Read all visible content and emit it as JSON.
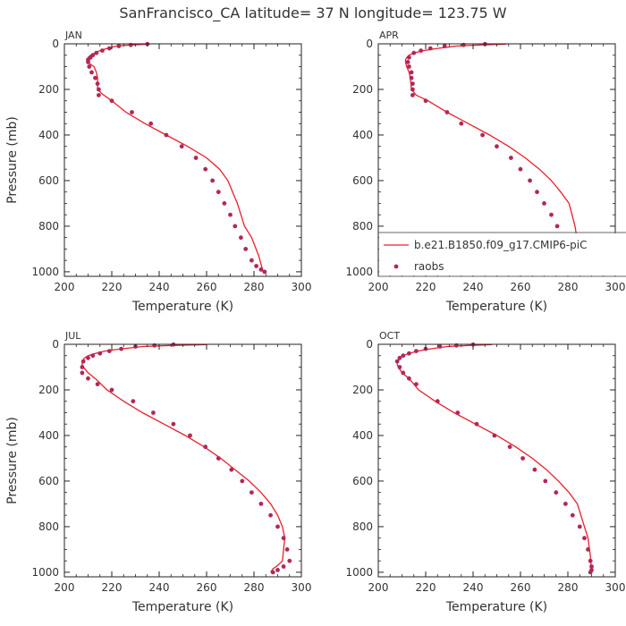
{
  "figure": {
    "title": "SanFrancisco_CA  latitude= 37 N longitude= 123.75 W",
    "colors": {
      "model": "#e8202a",
      "obs": "#b0285a",
      "axis": "#222222",
      "text": "#333333"
    }
  },
  "chart_data": [
    {
      "type": "line",
      "title": "JAN",
      "xlabel": "Temperature (K)",
      "ylabel": "Pressure (mb)",
      "xlim": [
        200,
        300
      ],
      "ylim": [
        1020,
        0
      ],
      "xticks": [
        "200",
        "220",
        "240",
        "260",
        "280",
        "300"
      ],
      "yticks": [
        "0",
        "200",
        "400",
        "600",
        "800",
        "1000"
      ],
      "grid": false,
      "series": [
        {
          "kind": "line",
          "x": [
            236,
            228,
            222,
            218,
            215,
            213,
            211,
            210,
            209.5,
            210,
            211,
            212.5,
            213.5,
            214,
            214,
            216,
            220,
            226,
            234,
            243,
            252,
            260,
            265.5,
            269,
            271,
            273,
            276,
            279,
            282,
            284
          ],
          "y": [
            1,
            5,
            10,
            20,
            30,
            40,
            50,
            60,
            70,
            80,
            90,
            100,
            125,
            150,
            200,
            220,
            250,
            300,
            350,
            400,
            450,
            500,
            550,
            600,
            650,
            700,
            800,
            850,
            930,
            1005
          ]
        },
        {
          "kind": "scatter",
          "x": [
            235,
            228,
            223,
            219,
            216,
            213.5,
            212,
            211,
            210,
            210,
            210.5,
            211.5,
            213,
            214,
            214.5,
            214.5,
            220,
            228.5,
            236.5,
            243,
            249.5,
            255.5,
            259.5,
            262.5,
            265,
            267.5,
            270,
            272,
            274.5,
            276.5,
            279,
            281,
            283,
            284.5
          ],
          "y": [
            1,
            5,
            10,
            20,
            30,
            40,
            50,
            60,
            70,
            80,
            100,
            125,
            150,
            175,
            200,
            225,
            250,
            300,
            350,
            400,
            450,
            500,
            550,
            600,
            650,
            700,
            750,
            800,
            850,
            900,
            950,
            975,
            990,
            1000
          ]
        }
      ]
    },
    {
      "type": "line",
      "title": "APR",
      "xlabel": "Temperature (K)",
      "ylabel": "",
      "xlim": [
        200,
        300
      ],
      "ylim": [
        1020,
        0
      ],
      "xticks": [
        "200",
        "220",
        "240",
        "260",
        "280",
        "300"
      ],
      "yticks": [
        "0",
        "200",
        "400",
        "600",
        "800",
        "1000"
      ],
      "grid": false,
      "series": [
        {
          "kind": "line",
          "x": [
            254,
            243,
            233,
            225,
            219,
            215,
            213,
            212,
            211.5,
            211.5,
            212,
            213,
            213.5,
            214,
            216,
            221,
            229,
            238,
            247,
            255,
            262,
            268,
            273,
            277,
            280.5,
            283,
            284.5,
            285.5
          ],
          "y": [
            1,
            5,
            10,
            20,
            30,
            40,
            50,
            60,
            70,
            80,
            100,
            125,
            150,
            200,
            225,
            250,
            300,
            350,
            400,
            450,
            500,
            550,
            600,
            650,
            700,
            800,
            900,
            1005
          ]
        },
        {
          "kind": "scatter",
          "x": [
            245,
            236,
            228,
            222,
            218,
            215,
            213,
            212.5,
            213,
            214,
            214,
            214.5,
            214.5,
            214.5,
            220,
            229,
            235,
            244,
            250,
            256,
            260,
            264,
            267,
            270,
            273,
            275.5,
            278,
            280.5,
            282,
            283.5,
            284.5,
            285.5
          ],
          "y": [
            1,
            5,
            10,
            20,
            30,
            40,
            60,
            80,
            100,
            125,
            150,
            175,
            200,
            225,
            250,
            300,
            350,
            400,
            450,
            500,
            550,
            600,
            650,
            700,
            750,
            800,
            850,
            900,
            950,
            975,
            990,
            1000
          ]
        }
      ],
      "legend": {
        "placement": "bottom-right",
        "entries": [
          {
            "kind": "line",
            "label": "b.e21.B1850.f09_g17.CMIP6-piC"
          },
          {
            "kind": "scatter",
            "label": "raobs"
          }
        ]
      }
    },
    {
      "type": "line",
      "title": "JUL",
      "xlabel": "Temperature (K)",
      "ylabel": "Pressure (mb)",
      "xlim": [
        200,
        300
      ],
      "ylim": [
        1020,
        0
      ],
      "xticks": [
        "200",
        "220",
        "240",
        "260",
        "280",
        "300"
      ],
      "yticks": [
        "0",
        "200",
        "400",
        "600",
        "800",
        "1000"
      ],
      "grid": false,
      "series": [
        {
          "kind": "line",
          "x": [
            260,
            245,
            233,
            224,
            217,
            213,
            210,
            208.5,
            207.5,
            207.5,
            208,
            210,
            213,
            218,
            225,
            233,
            242,
            251,
            259,
            266,
            272,
            278,
            283,
            287,
            290,
            292,
            293,
            292.5,
            292,
            290,
            288,
            287
          ],
          "y": [
            1,
            5,
            10,
            20,
            30,
            40,
            50,
            60,
            75,
            90,
            100,
            125,
            150,
            200,
            250,
            300,
            350,
            400,
            450,
            500,
            550,
            600,
            650,
            700,
            750,
            800,
            850,
            900,
            950,
            970,
            985,
            1000
          ]
        },
        {
          "kind": "scatter",
          "x": [
            246,
            238,
            230,
            224,
            219,
            215,
            212,
            210,
            208,
            207.5,
            207.5,
            210,
            214,
            220,
            229,
            237.5,
            246,
            253,
            259.5,
            265,
            270.5,
            275,
            279,
            283,
            287,
            290,
            292.5,
            294,
            295,
            292.5,
            290,
            288
          ],
          "y": [
            1,
            5,
            10,
            20,
            30,
            40,
            50,
            60,
            75,
            100,
            125,
            150,
            175,
            200,
            250,
            300,
            350,
            400,
            450,
            500,
            550,
            600,
            650,
            700,
            750,
            800,
            850,
            900,
            950,
            975,
            990,
            1000
          ]
        }
      ]
    },
    {
      "type": "line",
      "title": "OCT",
      "xlabel": "Temperature (K)",
      "ylabel": "",
      "xlim": [
        200,
        300
      ],
      "ylim": [
        1020,
        0
      ],
      "xticks": [
        "200",
        "220",
        "240",
        "260",
        "280",
        "300"
      ],
      "yticks": [
        "0",
        "200",
        "400",
        "600",
        "800",
        "1000"
      ],
      "grid": false,
      "series": [
        {
          "kind": "line",
          "x": [
            248,
            238,
            229,
            222,
            216.5,
            213,
            210.5,
            209,
            208,
            208,
            208.5,
            210,
            213,
            217,
            224,
            232,
            241,
            250,
            258,
            265,
            271,
            276,
            280.5,
            284,
            287,
            288.5,
            289.5,
            290
          ],
          "y": [
            1,
            5,
            10,
            20,
            30,
            40,
            50,
            60,
            75,
            90,
            100,
            125,
            150,
            200,
            250,
            300,
            350,
            400,
            450,
            500,
            550,
            600,
            650,
            700,
            800,
            850,
            930,
            1005
          ]
        },
        {
          "kind": "scatter",
          "x": [
            240,
            233,
            226,
            220,
            216,
            213,
            210.5,
            209,
            208,
            209,
            210.5,
            213,
            216,
            225,
            233.5,
            241.5,
            249,
            255.5,
            261,
            266,
            270.5,
            275,
            279,
            282,
            285,
            287,
            288.5,
            289.5,
            290,
            290,
            289.5
          ],
          "y": [
            1,
            5,
            10,
            20,
            30,
            40,
            50,
            60,
            75,
            100,
            125,
            150,
            175,
            250,
            300,
            350,
            400,
            450,
            500,
            550,
            600,
            650,
            700,
            750,
            800,
            850,
            900,
            950,
            975,
            990,
            1000
          ]
        }
      ]
    }
  ]
}
